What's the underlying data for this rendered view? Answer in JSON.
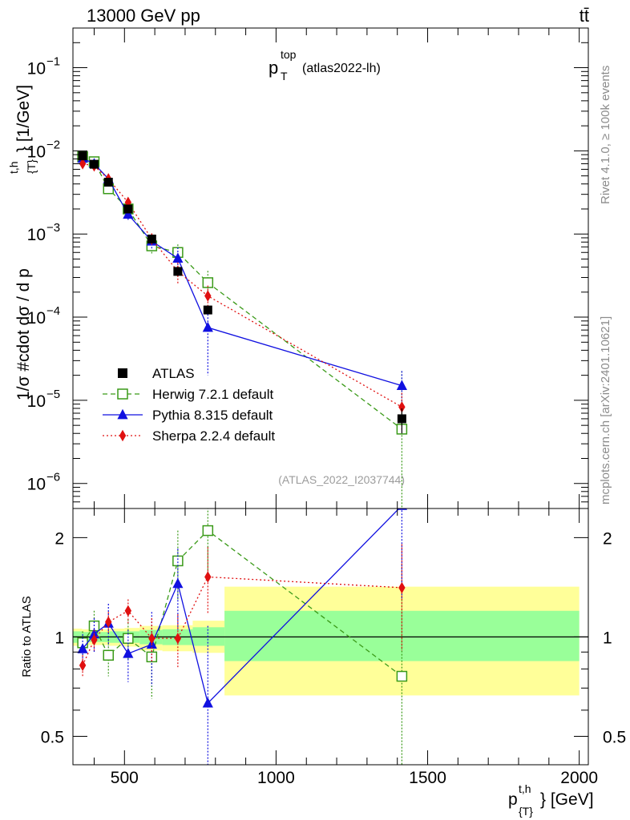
{
  "header": {
    "energy_label": "13000 GeV pp",
    "process_label": "tt̄",
    "plot_title_main": "p",
    "plot_title_sup": "top",
    "plot_title_sub": "T",
    "plot_title_tag": "(atlas2022-lh)",
    "analysis_id": "(ATLAS_2022_I2037744)",
    "side_note_right": "Rivet 4.1.0, ≥ 100k events",
    "side_note_bottom": "mcplots.cern.ch [arXiv:2401.10621]"
  },
  "chart_data": {
    "type": "scatter",
    "title": "p_T^top (atlas2022-lh)",
    "main": {
      "ylabel": "1/σ #cdot dσ / d p^{t,h}_{T} [1/GeV]",
      "ylabel_prefix": "1/σ #cdot dσ / d p",
      "ylabel_sup": "t,h",
      "ylabel_sub": "{T}",
      "ylabel_suffix": "} [1/GeV]",
      "yscale": "log",
      "ylim": [
        5e-07,
        0.3
      ],
      "yticks": [
        {
          "value": 1e-06,
          "base": "10",
          "exp": "−6"
        },
        {
          "value": 1e-05,
          "base": "10",
          "exp": "−5"
        },
        {
          "value": 0.0001,
          "base": "10",
          "exp": "−4"
        },
        {
          "value": 0.001,
          "base": "10",
          "exp": "−3"
        },
        {
          "value": 0.01,
          "base": "10",
          "exp": "−2"
        },
        {
          "value": 0.1,
          "base": "10",
          "exp": "−1"
        }
      ]
    },
    "ratio": {
      "ylabel": "Ratio to ATLAS",
      "yscale": "log",
      "ylim": [
        0.41,
        2.45
      ],
      "yticks": [
        {
          "value": 0.5,
          "label": "0.5"
        },
        {
          "value": 1,
          "label": "1"
        },
        {
          "value": 2,
          "label": "2"
        }
      ],
      "bands": [
        {
          "x0": 330,
          "x1": 360,
          "inner": [
            0.96,
            1.04
          ],
          "outer": [
            0.94,
            1.06
          ]
        },
        {
          "x0": 360,
          "x1": 400,
          "inner": [
            0.965,
            1.035
          ],
          "outer": [
            0.945,
            1.055
          ]
        },
        {
          "x0": 400,
          "x1": 450,
          "inner": [
            0.965,
            1.035
          ],
          "outer": [
            0.945,
            1.055
          ]
        },
        {
          "x0": 450,
          "x1": 500,
          "inner": [
            0.96,
            1.04
          ],
          "outer": [
            0.94,
            1.06
          ]
        },
        {
          "x0": 500,
          "x1": 550,
          "inner": [
            0.96,
            1.04
          ],
          "outer": [
            0.935,
            1.065
          ]
        },
        {
          "x0": 550,
          "x1": 625,
          "inner": [
            0.95,
            1.05
          ],
          "outer": [
            0.91,
            1.08
          ]
        },
        {
          "x0": 625,
          "x1": 725,
          "inner": [
            0.945,
            1.055
          ],
          "outer": [
            0.905,
            1.085
          ]
        },
        {
          "x0": 725,
          "x1": 830,
          "inner": [
            0.94,
            1.07
          ],
          "outer": [
            0.895,
            1.12
          ]
        },
        {
          "x0": 830,
          "x1": 2000,
          "inner": [
            0.845,
            1.2
          ],
          "outer": [
            0.665,
            1.42
          ]
        }
      ]
    },
    "xlabel": "p^{t,h}_{T} [GeV]",
    "xlabel_main": "p",
    "xlabel_sup": "t,h",
    "xlabel_sub": "{T}",
    "xlabel_suffix": "} [GeV]",
    "xlim": [
      330,
      2030
    ],
    "xticks": [
      500,
      1000,
      1500,
      2000
    ],
    "x": [
      362,
      400,
      447,
      512,
      590,
      676,
      775,
      1415
    ],
    "series": [
      {
        "name": "ATLAS",
        "color": "#000000",
        "marker": "square-filled",
        "line": "none",
        "values": [
          0.0087,
          0.0069,
          0.0042,
          0.002,
          0.00087,
          0.000355,
          0.000122,
          6e-06
        ],
        "errors": [
          0.0002,
          0.0002,
          0.00015,
          6e-05,
          3e-05,
          2e-05,
          1.2e-05,
          2e-06
        ],
        "ratio": [
          1,
          1,
          1,
          1,
          1,
          1,
          1,
          1
        ],
        "ratio_err": []
      },
      {
        "name": "Herwig 7.2.1 default",
        "color": "#3a9a18",
        "marker": "square-open",
        "line": "dashed",
        "values": [
          0.0085,
          0.0074,
          0.0035,
          0.002,
          0.00072,
          0.0006,
          0.00026,
          4.5e-06
        ],
        "errors": [
          0.0006,
          0.0007,
          0.0004,
          0.0003,
          0.00015,
          0.00015,
          0.0001,
          1.8e-05
        ],
        "ratio": [
          0.96,
          1.08,
          0.88,
          0.99,
          0.87,
          1.7,
          2.1,
          0.76
        ],
        "ratio_err": [
          0.08,
          0.12,
          0.12,
          0.14,
          0.22,
          0.4,
          0.6,
          0.9
        ]
      },
      {
        "name": "Pythia 8.315 default",
        "color": "#1010e0",
        "marker": "triangle-filled",
        "line": "solid",
        "values": [
          0.0081,
          0.007,
          0.0046,
          0.00172,
          0.00082,
          0.00051,
          7.5e-05,
          1.5e-05
        ],
        "errors": [
          0.0006,
          0.0006,
          0.0005,
          0.0003,
          0.00018,
          0.00018,
          5.5e-05,
          7.5e-06
        ],
        "ratio": [
          0.92,
          1.02,
          1.1,
          0.89,
          0.95,
          1.45,
          0.63,
          2.5
        ],
        "ratio_err": [
          0.1,
          0.12,
          0.16,
          0.16,
          0.24,
          0.4,
          0.45,
          1.2
        ]
      },
      {
        "name": "Sherpa 2.2.4 default",
        "color": "#e01010",
        "marker": "diamond-filled",
        "line": "dotted",
        "values": [
          0.007,
          0.0066,
          0.0046,
          0.0024,
          0.00087,
          0.000355,
          0.00018,
          8.3e-06
        ],
        "errors": [
          0.0005,
          0.0005,
          0.0004,
          0.0003,
          0.00015,
          0.0001,
          6e-05,
          4e-06
        ],
        "ratio": [
          0.82,
          0.98,
          1.11,
          1.2,
          0.99,
          0.99,
          1.52,
          1.41
        ],
        "ratio_err": [
          0.06,
          0.07,
          0.08,
          0.1,
          0.15,
          0.18,
          0.35,
          0.5
        ]
      }
    ],
    "legend": {
      "placement": "lower-left"
    }
  }
}
